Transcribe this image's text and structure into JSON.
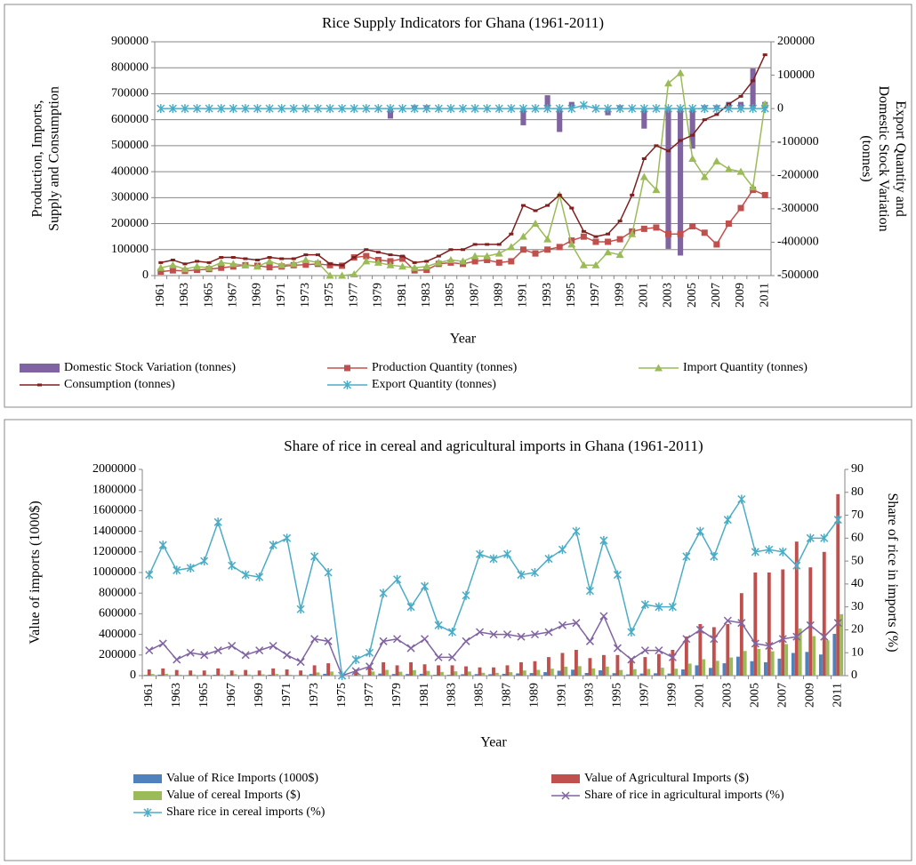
{
  "chart_data": [
    {
      "type": "bar-line",
      "title": "Rice Supply Indicators for Ghana (1961-2011)",
      "x_label": "Year",
      "y_label": "Production, Imports, Supply and Consumption",
      "y2_label": "Export Quantity and Domestic Stock Variation (tonnes)",
      "categories": [
        "1961",
        null,
        "1963",
        null,
        "1965",
        null,
        "1967",
        null,
        "1969",
        null,
        "1971",
        null,
        "1973",
        null,
        "1975",
        null,
        "1977",
        null,
        "1979",
        null,
        "1981",
        null,
        "1983",
        null,
        "1985",
        null,
        "1987",
        null,
        "1989",
        null,
        "1991",
        null,
        "1993",
        null,
        "1995",
        null,
        "1997",
        null,
        "1999",
        null,
        "2001",
        null,
        "2003",
        null,
        "2005",
        null,
        "2007",
        null,
        "2009",
        null,
        "2011"
      ],
      "ylim": [
        0,
        900000
      ],
      "yticks": [
        0,
        100000,
        200000,
        300000,
        400000,
        500000,
        600000,
        700000,
        800000,
        900000
      ],
      "y2lim": [
        -500000,
        200000
      ],
      "y2ticks": [
        -500000,
        -400000,
        -300000,
        -200000,
        -100000,
        0,
        100000,
        200000
      ],
      "grid": true,
      "legend": "bottom",
      "series": [
        {
          "name": "Domestic  Stock Variation (tonnes)",
          "mark": "bar",
          "axis": "y2",
          "color": "#8064a2",
          "values": [
            0,
            0,
            0,
            0,
            0,
            0,
            0,
            0,
            0,
            0,
            0,
            0,
            0,
            0,
            0,
            0,
            0,
            0,
            0,
            -30000,
            0,
            10000,
            10000,
            0,
            0,
            0,
            0,
            0,
            0,
            0,
            -50000,
            0,
            40000,
            -70000,
            20000,
            0,
            0,
            -20000,
            10000,
            0,
            -60000,
            0,
            -420000,
            -440000,
            -120000,
            10000,
            10000,
            20000,
            20000,
            120000,
            20000
          ]
        },
        {
          "name": "Production Quantity (tonnes)",
          "mark": "line",
          "marker": "square",
          "color": "#c0504d",
          "values": [
            15000,
            20000,
            18000,
            22000,
            25000,
            30000,
            35000,
            40000,
            38000,
            32000,
            35000,
            40000,
            42000,
            45000,
            40000,
            38000,
            70000,
            75000,
            60000,
            55000,
            65000,
            20000,
            22000,
            45000,
            50000,
            45000,
            55000,
            60000,
            50000,
            55000,
            100000,
            85000,
            100000,
            110000,
            135000,
            150000,
            130000,
            130000,
            140000,
            170000,
            180000,
            185000,
            160000,
            160000,
            190000,
            165000,
            120000,
            200000,
            260000,
            330000,
            310000
          ]
        },
        {
          "name": "Import Quantity (tonnes)",
          "mark": "line",
          "marker": "triangle",
          "color": "#9bbb59",
          "values": [
            30000,
            40000,
            25000,
            35000,
            30000,
            50000,
            45000,
            40000,
            35000,
            55000,
            40000,
            45000,
            60000,
            50000,
            0,
            0,
            5000,
            55000,
            50000,
            40000,
            35000,
            30000,
            35000,
            50000,
            60000,
            55000,
            75000,
            75000,
            85000,
            110000,
            150000,
            200000,
            140000,
            310000,
            120000,
            40000,
            40000,
            90000,
            80000,
            160000,
            380000,
            330000,
            740000,
            780000,
            450000,
            380000,
            440000,
            410000,
            400000,
            340000,
            660000
          ]
        },
        {
          "name": "Consumption (tonnes)",
          "mark": "line",
          "marker": "dash",
          "color": "#7f1f1f",
          "values": [
            50000,
            60000,
            45000,
            55000,
            50000,
            70000,
            70000,
            65000,
            60000,
            70000,
            65000,
            65000,
            80000,
            80000,
            45000,
            40000,
            70000,
            100000,
            90000,
            80000,
            75000,
            50000,
            55000,
            75000,
            100000,
            100000,
            120000,
            120000,
            120000,
            160000,
            270000,
            250000,
            270000,
            310000,
            260000,
            170000,
            150000,
            160000,
            210000,
            310000,
            450000,
            500000,
            480000,
            520000,
            540000,
            600000,
            620000,
            660000,
            690000,
            750000,
            850000
          ]
        },
        {
          "name": "Export Quantity (tonnes)",
          "mark": "line",
          "marker": "star",
          "axis": "y2",
          "color": "#4bacc6",
          "values": [
            0,
            0,
            0,
            0,
            0,
            0,
            0,
            0,
            0,
            0,
            0,
            0,
            0,
            0,
            0,
            0,
            0,
            0,
            0,
            0,
            0,
            0,
            0,
            0,
            0,
            0,
            0,
            0,
            0,
            0,
            0,
            0,
            0,
            0,
            0,
            10000,
            0,
            0,
            0,
            0,
            0,
            0,
            0,
            0,
            0,
            0,
            0,
            0,
            0,
            0,
            0
          ]
        }
      ]
    },
    {
      "type": "bar-line",
      "title": "Share of rice in cereal and agricultural imports in Ghana (1961-2011)",
      "x_label": "Year",
      "y_label": "Value of imports (1000$)",
      "y2_label": "Share of rice in imports (%)",
      "categories": [
        "1961",
        null,
        "1963",
        null,
        "1965",
        null,
        "1967",
        null,
        "1969",
        null,
        "1971",
        null,
        "1973",
        null,
        "1975",
        null,
        "1977",
        null,
        "1979",
        null,
        "1981",
        null,
        "1983",
        null,
        "1985",
        null,
        "1987",
        null,
        "1989",
        null,
        "1991",
        null,
        "1993",
        null,
        "1995",
        null,
        "1997",
        null,
        "1999",
        null,
        "2001",
        null,
        "2003",
        null,
        "2005",
        null,
        "2007",
        null,
        "2009",
        null,
        "2011"
      ],
      "ylim": [
        0,
        2000000
      ],
      "yticks": [
        0,
        200000,
        400000,
        600000,
        800000,
        1000000,
        1200000,
        1400000,
        1600000,
        1800000,
        2000000
      ],
      "y2lim": [
        0,
        90
      ],
      "y2ticks": [
        0,
        10,
        20,
        30,
        40,
        50,
        60,
        70,
        80,
        90
      ],
      "grid": false,
      "legend": "bottom",
      "series": [
        {
          "name": "Value of Rice Imports (1000$)",
          "mark": "bar",
          "color": "#4f81bd",
          "values": [
            7000,
            10000,
            4000,
            5000,
            5000,
            8000,
            6500,
            5000,
            5500,
            9000,
            5500,
            3000,
            16000,
            18000,
            0,
            1000,
            4000,
            20000,
            16000,
            16000,
            18000,
            8000,
            8000,
            14000,
            15000,
            14000,
            18000,
            22000,
            25000,
            34000,
            48000,
            58000,
            26000,
            52000,
            24000,
            12000,
            20000,
            23000,
            20000,
            61000,
            100000,
            75000,
            120000,
            184000,
            140000,
            130000,
            165000,
            220000,
            230000,
            205000,
            405000
          ]
        },
        {
          "name": "Value of Agricultural Imports ($)",
          "mark": "bar",
          "color": "#c0504d",
          "values": [
            60000,
            70000,
            55000,
            50000,
            50000,
            70000,
            50000,
            55000,
            50000,
            70000,
            60000,
            50000,
            100000,
            120000,
            20000,
            60000,
            100000,
            130000,
            100000,
            130000,
            110000,
            100000,
            100000,
            90000,
            80000,
            80000,
            100000,
            130000,
            140000,
            180000,
            220000,
            250000,
            170000,
            200000,
            200000,
            170000,
            180000,
            210000,
            250000,
            380000,
            500000,
            470000,
            500000,
            800000,
            1000000,
            1000000,
            1030000,
            1300000,
            1050000,
            1200000,
            1760000
          ]
        },
        {
          "name": "Value of cereal Imports ($)",
          "mark": "bar",
          "color": "#9bbb59",
          "values": [
            16000,
            18000,
            9000,
            11000,
            10000,
            12000,
            14000,
            11000,
            13000,
            16000,
            9000,
            10000,
            31000,
            40000,
            5000,
            14000,
            40000,
            56000,
            38000,
            53000,
            46000,
            36000,
            42000,
            40000,
            28000,
            27000,
            34000,
            50000,
            56000,
            67000,
            87000,
            92000,
            70000,
            88000,
            55000,
            63000,
            65000,
            77000,
            67000,
            117000,
            159000,
            144000,
            176000,
            239000,
            259000,
            236000,
            306000,
            458000,
            383000,
            342000,
            596000
          ]
        },
        {
          "name": "Share of rice in agricultural imports (%)",
          "mark": "line",
          "marker": "x",
          "axis": "y2",
          "color": "#8064a2",
          "values": [
            11,
            14,
            7,
            10,
            9,
            11,
            13,
            9,
            11,
            13,
            9,
            6,
            16,
            15,
            0,
            2,
            4,
            15,
            16,
            12,
            16,
            8,
            8,
            15,
            19,
            18,
            18,
            17,
            18,
            19,
            22,
            23,
            15,
            26,
            12,
            7,
            11,
            11,
            8,
            16,
            20,
            16,
            24,
            23,
            14,
            13,
            16,
            17,
            22,
            17,
            23
          ]
        },
        {
          "name": "Share rice in cereal imports (%)",
          "mark": "line",
          "marker": "star",
          "axis": "y2",
          "color": "#4bacc6",
          "values": [
            44,
            57,
            46,
            47,
            50,
            67,
            48,
            44,
            43,
            57,
            60,
            29,
            52,
            45,
            0,
            7,
            10,
            36,
            42,
            30,
            39,
            22,
            19,
            35,
            53,
            51,
            53,
            44,
            45,
            51,
            55,
            63,
            37,
            59,
            44,
            19,
            31,
            30,
            30,
            52,
            63,
            52,
            68,
            77,
            54,
            55,
            54,
            48,
            60,
            60,
            68
          ]
        }
      ]
    }
  ]
}
